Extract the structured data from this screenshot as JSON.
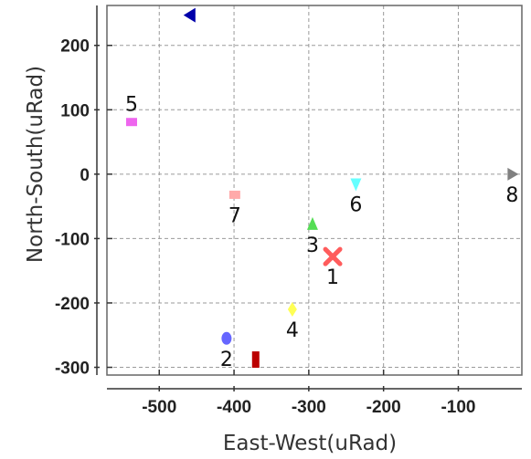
{
  "chart_data": {
    "type": "scatter",
    "xlabel": "East-West(uRad)",
    "ylabel": "North-South(uRad)",
    "xlim": [
      -570,
      -15
    ],
    "ylim": [
      -312,
      262
    ],
    "x_ticks": [
      -500,
      -400,
      -300,
      -200,
      -100
    ],
    "y_ticks": [
      200,
      100,
      0,
      -100,
      -200,
      -300
    ],
    "x_tick_labels": [
      "-500",
      "-400",
      "-300",
      "-200",
      "-100"
    ],
    "y_tick_labels": [
      "200",
      "100",
      "0",
      "-100",
      "-200",
      "-300"
    ],
    "grid": true,
    "points": [
      {
        "label": "1",
        "x": -268,
        "y": -128,
        "marker": "x",
        "color": "#ff5c5c",
        "label_pos": "below"
      },
      {
        "label": "2",
        "x": -410,
        "y": -255,
        "marker": "circle",
        "color": "#6666ff",
        "label_pos": "below"
      },
      {
        "label": "3",
        "x": -295,
        "y": -78,
        "marker": "triangle-up",
        "color": "#55dd55",
        "label_pos": "below"
      },
      {
        "label": "4",
        "x": -322,
        "y": -210,
        "marker": "diamond",
        "color": "#ffff55",
        "label_pos": "below"
      },
      {
        "label": "5",
        "x": -537,
        "y": 81,
        "marker": "square",
        "color": "#ee66ee",
        "label_pos": "above"
      },
      {
        "label": "6",
        "x": -237,
        "y": -15,
        "marker": "triangle-down",
        "color": "#66ffff",
        "label_pos": "below"
      },
      {
        "label": "7",
        "x": -399,
        "y": -32,
        "marker": "square",
        "color": "#ffaaaa",
        "label_pos": "below"
      },
      {
        "label": "8",
        "x": -28,
        "y": 0,
        "marker": "triangle-right",
        "color": "#808080",
        "label_pos": "below"
      },
      {
        "label": "",
        "x": -459,
        "y": 247,
        "marker": "triangle-left",
        "color": "#0000aa",
        "label_pos": "none"
      },
      {
        "label": "",
        "x": -371,
        "y": -288,
        "marker": "rect-tall",
        "color": "#bb0000",
        "label_pos": "none"
      }
    ]
  }
}
